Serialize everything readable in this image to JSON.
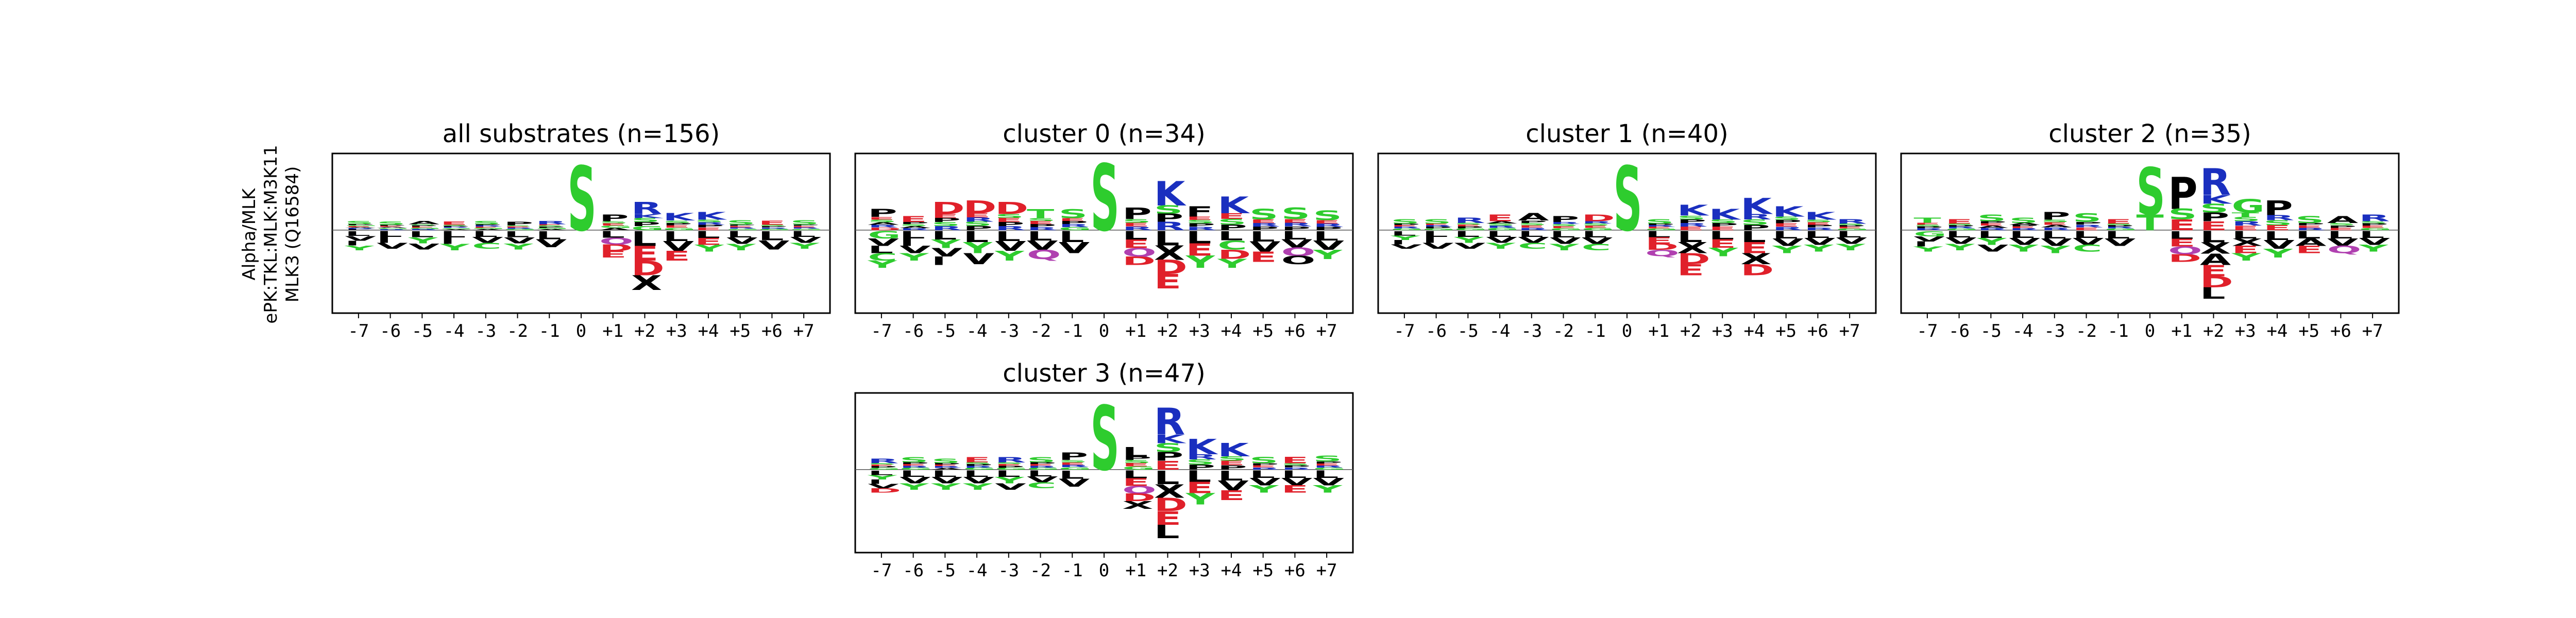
{
  "figure": {
    "ylabel_lines": [
      "Alpha/MLK",
      "ePK:TKL:MLK:M3K11",
      "MLK3 (Q16584)"
    ]
  },
  "colors": {
    "S": "#2ecc2e",
    "T": "#2ecc2e",
    "G": "#2ecc2e",
    "C": "#2ecc2e",
    "Y": "#2ecc2e",
    "P": "#000000",
    "L": "#000000",
    "V": "#000000",
    "I": "#000000",
    "F": "#000000",
    "M": "#000000",
    "A": "#000000",
    "W": "#000000",
    "K": "#1a2fbf",
    "R": "#1a2fbf",
    "H": "#1a2fbf",
    "D": "#e0202a",
    "E": "#e0202a",
    "N": "#b040b0",
    "Q": "#b040b0"
  },
  "chart_data": [
    {
      "type": "sequence-logo",
      "title": "all substrates (n=156)",
      "positions": [
        "-7",
        "-6",
        "-5",
        "-4",
        "-3",
        "-2",
        "-1",
        "0",
        "+1",
        "+2",
        "+3",
        "+4",
        "+5",
        "+6",
        "+7"
      ],
      "up": [
        [
          "S",
          "P",
          "G",
          "E",
          "A",
          "R",
          "L"
        ],
        [
          "S",
          "P",
          "E",
          "A",
          "G",
          "R"
        ],
        [
          "A",
          "S",
          "P",
          "E",
          "G",
          "R"
        ],
        [
          "E",
          "S",
          "P",
          "R",
          "G",
          "A"
        ],
        [
          "S",
          "P",
          "R",
          "E",
          "G",
          "A"
        ],
        [
          "P",
          "S",
          "E",
          "R",
          "G"
        ],
        [
          "R",
          "E",
          "S",
          "P",
          "G",
          "A"
        ],
        [
          "S"
        ],
        [
          "P",
          "S",
          "E",
          "G",
          "A"
        ],
        [
          "R",
          "K",
          "S",
          "P",
          "G"
        ],
        [
          "K",
          "S",
          "P",
          "E",
          "G"
        ],
        [
          "K",
          "S",
          "R",
          "P",
          "E"
        ],
        [
          "S",
          "P",
          "E",
          "R",
          "G"
        ],
        [
          "E",
          "S",
          "P",
          "R",
          "G"
        ],
        [
          "S",
          "P",
          "E",
          "R",
          "G"
        ]
      ],
      "up_heights": [
        0.13,
        0.12,
        0.13,
        0.12,
        0.13,
        0.12,
        0.13,
        0.92,
        0.22,
        0.4,
        0.24,
        0.26,
        0.14,
        0.13,
        0.14
      ],
      "down": [
        [
          "L",
          "V",
          "I",
          "Y"
        ],
        [
          "L",
          "I",
          "V"
        ],
        [
          "L",
          "Y",
          "V"
        ],
        [
          "L",
          "I",
          "Y"
        ],
        [
          "L",
          "V",
          "C"
        ],
        [
          "L",
          "V",
          "Y"
        ],
        [
          "L",
          "V"
        ],
        [],
        [
          "L",
          "Q",
          "D",
          "E"
        ],
        [
          "L",
          "E",
          "D",
          "X"
        ],
        [
          "L",
          "V",
          "E"
        ],
        [
          "L",
          "E",
          "Y"
        ],
        [
          "L",
          "V",
          "Y"
        ],
        [
          "L",
          "V"
        ],
        [
          "L",
          "V",
          "Y"
        ]
      ],
      "down_heights": [
        0.26,
        0.24,
        0.25,
        0.26,
        0.24,
        0.25,
        0.22,
        0,
        0.36,
        0.8,
        0.4,
        0.28,
        0.26,
        0.25,
        0.24
      ]
    },
    {
      "type": "sequence-logo",
      "title": "cluster 0 (n=34)",
      "positions": [
        "-7",
        "-6",
        "-5",
        "-4",
        "-3",
        "-2",
        "-1",
        "0",
        "+1",
        "+2",
        "+3",
        "+4",
        "+5",
        "+6",
        "+7"
      ],
      "up": [
        [
          "P",
          "E",
          "S",
          "A",
          "R",
          "D"
        ],
        [
          "E",
          "P",
          "S",
          "A",
          "R"
        ],
        [
          "D",
          "E",
          "P",
          "S",
          "R"
        ],
        [
          "D",
          "E",
          "R",
          "S",
          "P"
        ],
        [
          "D",
          "S",
          "E",
          "P",
          "R"
        ],
        [
          "T",
          "S",
          "E",
          "P",
          "R"
        ],
        [
          "S",
          "E",
          "P",
          "R",
          "G"
        ],
        [
          "S"
        ],
        [
          "P",
          "S",
          "E",
          "R"
        ],
        [
          "K",
          "S",
          "P",
          "R"
        ],
        [
          "F",
          "E",
          "S",
          "P",
          "R"
        ],
        [
          "K",
          "E",
          "S",
          "P"
        ],
        [
          "S",
          "E",
          "R",
          "P"
        ],
        [
          "S",
          "E",
          "R",
          "P"
        ],
        [
          "S",
          "E",
          "R",
          "P"
        ]
      ],
      "up_heights": [
        0.3,
        0.2,
        0.4,
        0.42,
        0.4,
        0.3,
        0.3,
        0.95,
        0.32,
        0.7,
        0.34,
        0.48,
        0.3,
        0.32,
        0.28
      ],
      "down": [
        [
          "G",
          "V",
          "L",
          "C",
          "Y"
        ],
        [
          "L",
          "I",
          "V",
          "Y"
        ],
        [
          "L",
          "Y",
          "V",
          "I"
        ],
        [
          "L",
          "Y",
          "V"
        ],
        [
          "L",
          "V",
          "Y"
        ],
        [
          "L",
          "V",
          "Q"
        ],
        [
          "L",
          "V"
        ],
        [],
        [
          "L",
          "E",
          "Q",
          "D"
        ],
        [
          "L",
          "X",
          "D",
          "E"
        ],
        [
          "L",
          "E",
          "Y"
        ],
        [
          "L",
          "C",
          "D",
          "Y"
        ],
        [
          "L",
          "V",
          "E"
        ],
        [
          "L",
          "V",
          "Q",
          "O"
        ],
        [
          "L",
          "V",
          "Y"
        ]
      ],
      "down_heights": [
        0.5,
        0.4,
        0.46,
        0.45,
        0.4,
        0.38,
        0.3,
        0,
        0.46,
        0.78,
        0.5,
        0.5,
        0.42,
        0.45,
        0.38
      ]
    },
    {
      "type": "sequence-logo",
      "title": "cluster 1 (n=40)",
      "positions": [
        "-7",
        "-6",
        "-5",
        "-4",
        "-3",
        "-2",
        "-1",
        "0",
        "+1",
        "+2",
        "+3",
        "+4",
        "+5",
        "+6",
        "+7"
      ],
      "up": [
        [
          "S",
          "P",
          "E",
          "R",
          "G"
        ],
        [
          "S",
          "E",
          "R",
          "P",
          "G"
        ],
        [
          "R",
          "S",
          "E",
          "P",
          "G"
        ],
        [
          "E",
          "A",
          "S",
          "R",
          "G"
        ],
        [
          "A",
          "P",
          "S",
          "E",
          "R"
        ],
        [
          "P",
          "R",
          "S",
          "E",
          "G"
        ],
        [
          "D",
          "R",
          "S",
          "E",
          "G"
        ],
        [
          "S"
        ],
        [
          "S",
          "P",
          "R",
          "E",
          "G"
        ],
        [
          "K",
          "S",
          "P",
          "R",
          "E"
        ],
        [
          "K",
          "S",
          "P",
          "E"
        ],
        [
          "K",
          "R",
          "S",
          "P"
        ],
        [
          "K",
          "S",
          "P",
          "E",
          "R"
        ],
        [
          "K",
          "S",
          "E",
          "P",
          "R"
        ],
        [
          "R",
          "S",
          "P",
          "E",
          "G"
        ]
      ],
      "up_heights": [
        0.16,
        0.16,
        0.18,
        0.22,
        0.24,
        0.2,
        0.22,
        0.92,
        0.16,
        0.36,
        0.3,
        0.46,
        0.34,
        0.26,
        0.16
      ],
      "down": [
        [
          "L",
          "Y",
          "I",
          "V"
        ],
        [
          "L",
          "I",
          "V"
        ],
        [
          "L",
          "Y",
          "V"
        ],
        [
          "L",
          "V",
          "Y"
        ],
        [
          "L",
          "V",
          "C"
        ],
        [
          "L",
          "V",
          "Y"
        ],
        [
          "L",
          "V",
          "C"
        ],
        [],
        [
          "L",
          "E",
          "D",
          "Q"
        ],
        [
          "L",
          "X",
          "D",
          "E"
        ],
        [
          "L",
          "E",
          "Y"
        ],
        [
          "L",
          "E",
          "X",
          "D"
        ],
        [
          "L",
          "V",
          "Y"
        ],
        [
          "L",
          "V",
          "Y"
        ],
        [
          "L",
          "V",
          "Y"
        ]
      ],
      "down_heights": [
        0.24,
        0.24,
        0.24,
        0.24,
        0.24,
        0.26,
        0.26,
        0,
        0.34,
        0.6,
        0.34,
        0.6,
        0.3,
        0.28,
        0.26
      ]
    },
    {
      "type": "sequence-logo",
      "title": "cluster 2 (n=35)",
      "positions": [
        "-7",
        "-6",
        "-5",
        "-4",
        "-3",
        "-2",
        "-1",
        "0",
        "+1",
        "+2",
        "+3",
        "+4",
        "+5",
        "+6",
        "+7"
      ],
      "up": [
        [
          "T",
          "E",
          "S",
          "P",
          "R"
        ],
        [
          "E",
          "S",
          "P",
          "R",
          "G"
        ],
        [
          "S",
          "P",
          "E",
          "A",
          "R"
        ],
        [
          "S",
          "A",
          "P",
          "E",
          "R"
        ],
        [
          "P",
          "S",
          "E",
          "A",
          "R"
        ],
        [
          "S",
          "P",
          "R",
          "E"
        ],
        [
          "E",
          "S",
          "P",
          "R",
          "G"
        ],
        [
          "S",
          "T"
        ],
        [
          "P",
          "S",
          "E"
        ],
        [
          "R",
          "K",
          "S",
          "P",
          "E"
        ],
        [
          "G",
          "T",
          "S",
          "R",
          "E"
        ],
        [
          "P",
          "R",
          "S",
          "E"
        ],
        [
          "S",
          "P",
          "E",
          "R"
        ],
        [
          "A",
          "S",
          "P",
          "E"
        ],
        [
          "R",
          "S",
          "P",
          "E",
          "G"
        ]
      ],
      "up_heights": [
        0.18,
        0.16,
        0.22,
        0.18,
        0.26,
        0.24,
        0.16,
        0.9,
        0.76,
        0.88,
        0.44,
        0.42,
        0.2,
        0.2,
        0.22
      ],
      "down": [
        [
          "G",
          "V",
          "I",
          "Y"
        ],
        [
          "L",
          "V",
          "Y"
        ],
        [
          "L",
          "Y",
          "V"
        ],
        [
          "L",
          "V",
          "Y"
        ],
        [
          "L",
          "V",
          "Y"
        ],
        [
          "L",
          "V",
          "C"
        ],
        [
          "L",
          "V"
        ],
        [],
        [
          "L",
          "E",
          "Q",
          "D"
        ],
        [
          "L",
          "X",
          "A",
          "E",
          "D",
          "L"
        ],
        [
          "L",
          "X",
          "E",
          "Y"
        ],
        [
          "L",
          "V",
          "Y"
        ],
        [
          "L",
          "A",
          "E"
        ],
        [
          "L",
          "V",
          "Q"
        ],
        [
          "L",
          "V",
          "Y"
        ]
      ],
      "down_heights": [
        0.28,
        0.26,
        0.28,
        0.28,
        0.3,
        0.28,
        0.2,
        0,
        0.42,
        0.92,
        0.4,
        0.36,
        0.3,
        0.3,
        0.28
      ]
    },
    {
      "type": "sequence-logo",
      "title": "cluster 3 (n=47)",
      "positions": [
        "-7",
        "-6",
        "-5",
        "-4",
        "-3",
        "-2",
        "-1",
        "0",
        "+1",
        "+2",
        "+3",
        "+4",
        "+5",
        "+6",
        "+7"
      ],
      "up": [
        [
          "R",
          "S",
          "E",
          "P",
          "G"
        ],
        [
          "S",
          "P",
          "E",
          "R",
          "G"
        ],
        [
          "S",
          "P",
          "E",
          "R",
          "A"
        ],
        [
          "E",
          "S",
          "P",
          "R",
          "G"
        ],
        [
          "R",
          "S",
          "E",
          "P",
          "G"
        ],
        [
          "S",
          "P",
          "E",
          "R",
          "G"
        ],
        [
          "P",
          "S",
          "E",
          "R",
          "G"
        ],
        [
          "S"
        ],
        [
          "L",
          "P",
          "S",
          "E",
          "G"
        ],
        [
          "R",
          "K",
          "S",
          "P",
          "E"
        ],
        [
          "K",
          "R",
          "S",
          "P"
        ],
        [
          "K",
          "S",
          "E",
          "P"
        ],
        [
          "S",
          "P",
          "E",
          "R"
        ],
        [
          "E",
          "S",
          "P",
          "R"
        ],
        [
          "S",
          "P",
          "E",
          "R",
          "G"
        ]
      ],
      "up_heights": [
        0.16,
        0.18,
        0.16,
        0.18,
        0.18,
        0.18,
        0.24,
        0.92,
        0.32,
        0.88,
        0.44,
        0.38,
        0.18,
        0.18,
        0.2
      ],
      "down": [
        [
          "L",
          "Y",
          "I",
          "V",
          "D"
        ],
        [
          "L",
          "V",
          "Y"
        ],
        [
          "L",
          "V",
          "Y"
        ],
        [
          "L",
          "V",
          "Y"
        ],
        [
          "L",
          "Y",
          "V"
        ],
        [
          "L",
          "V",
          "C"
        ],
        [
          "L",
          "V"
        ],
        [],
        [
          "L",
          "E",
          "Q",
          "D",
          "X"
        ],
        [
          "L",
          "X",
          "D",
          "E",
          "L"
        ],
        [
          "L",
          "E",
          "Y"
        ],
        [
          "L",
          "V",
          "E"
        ],
        [
          "L",
          "V",
          "Y"
        ],
        [
          "L",
          "V",
          "E"
        ],
        [
          "L",
          "V",
          "Y"
        ]
      ],
      "down_heights": [
        0.3,
        0.26,
        0.26,
        0.26,
        0.26,
        0.24,
        0.22,
        0,
        0.52,
        0.92,
        0.46,
        0.4,
        0.3,
        0.3,
        0.3
      ]
    }
  ]
}
